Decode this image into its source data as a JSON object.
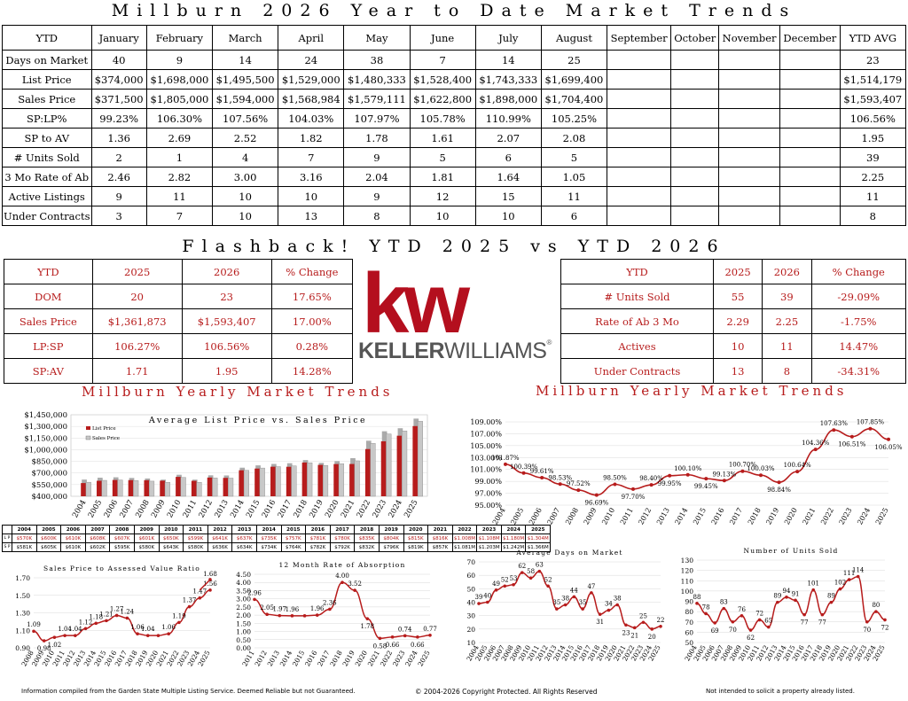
{
  "main_title": "Millburn 2026 Year to Date Market Trends",
  "ytd_table": {
    "headers": [
      "YTD",
      "January",
      "February",
      "March",
      "April",
      "May",
      "June",
      "July",
      "August",
      "September",
      "October",
      "November",
      "December",
      "YTD AVG"
    ],
    "rows": [
      [
        "Days on Market",
        "40",
        "9",
        "14",
        "24",
        "38",
        "7",
        "14",
        "25",
        "",
        "",
        "",
        "",
        "23"
      ],
      [
        "List Price",
        "$374,000",
        "$1,698,000",
        "$1,495,500",
        "$1,529,000",
        "$1,480,333",
        "$1,528,400",
        "$1,743,333",
        "$1,699,400",
        "",
        "",
        "",
        "",
        "$1,514,179"
      ],
      [
        "Sales Price",
        "$371,500",
        "$1,805,000",
        "$1,594,000",
        "$1,568,984",
        "$1,579,111",
        "$1,622,800",
        "$1,898,000",
        "$1,704,400",
        "",
        "",
        "",
        "",
        "$1,593,407"
      ],
      [
        "SP:LP%",
        "99.23%",
        "106.30%",
        "107.56%",
        "104.03%",
        "107.97%",
        "105.78%",
        "110.99%",
        "105.25%",
        "",
        "",
        "",
        "",
        "106.56%"
      ],
      [
        "SP to AV",
        "1.36",
        "2.69",
        "2.52",
        "1.82",
        "1.78",
        "1.61",
        "2.07",
        "2.08",
        "",
        "",
        "",
        "",
        "1.95"
      ],
      [
        "# Units Sold",
        "2",
        "1",
        "4",
        "7",
        "9",
        "5",
        "6",
        "5",
        "",
        "",
        "",
        "",
        "39"
      ],
      [
        "3 Mo Rate of Ab",
        "2.46",
        "2.82",
        "3.00",
        "3.16",
        "2.04",
        "1.81",
        "1.64",
        "1.05",
        "",
        "",
        "",
        "",
        "2.25"
      ],
      [
        "Active Listings",
        "9",
        "11",
        "10",
        "10",
        "9",
        "12",
        "15",
        "11",
        "",
        "",
        "",
        "",
        "11"
      ],
      [
        "Under Contracts",
        "3",
        "7",
        "10",
        "13",
        "8",
        "10",
        "10",
        "6",
        "",
        "",
        "",
        "",
        "8"
      ]
    ]
  },
  "flashback_title": "Flashback!  YTD 2025 vs YTD 2026",
  "flash_left": {
    "headers": [
      "YTD",
      "2025",
      "2026",
      "% Change"
    ],
    "rows": [
      [
        "DOM",
        "20",
        "23",
        "17.65%"
      ],
      [
        "Sales Price",
        "$1,361,873",
        "$1,593,407",
        "17.00%"
      ],
      [
        "LP:SP",
        "106.27%",
        "106.56%",
        "0.28%"
      ],
      [
        "SP:AV",
        "1.71",
        "1.95",
        "14.28%"
      ]
    ]
  },
  "flash_right": {
    "headers": [
      "YTD",
      "2025",
      "2026",
      "% Change"
    ],
    "rows": [
      [
        "# Units Sold",
        "55",
        "39",
        "-29.09%"
      ],
      [
        "Rate of Ab 3 Mo",
        "2.29",
        "2.25",
        "-1.75%"
      ],
      [
        "Actives",
        "10",
        "11",
        "14.47%"
      ],
      [
        "Under Contracts",
        "13",
        "8",
        "-34.31%"
      ]
    ]
  },
  "logo": {
    "mark": "kw",
    "name_bold": "KELLER",
    "name_light": "WILLIAMS",
    "reg": "®",
    "color": "#b40f1e"
  },
  "yearly_title_left": "Millburn Yearly Market Trends",
  "yearly_title_right": "Millburn Yearly Market Trends",
  "colors": {
    "accent": "#b71c1c",
    "bar_gray": "#c8c8c8"
  },
  "chart_data": [
    {
      "type": "bar",
      "title": "Average List Price vs. Sales Price",
      "categories": [
        "2004",
        "2005",
        "2006",
        "2007",
        "2008",
        "2009",
        "2010",
        "2011",
        "2012",
        "2013",
        "2014",
        "2015",
        "2016",
        "2017",
        "2018",
        "2019",
        "2020",
        "2021",
        "2022",
        "2023",
        "2024",
        "2025"
      ],
      "series": [
        {
          "name": "List Price",
          "values": [
            570000,
            600000,
            610000,
            608000,
            607000,
            601000,
            650000,
            599000,
            641000,
            637000,
            735000,
            757000,
            781000,
            780000,
            835000,
            804000,
            815000,
            816000,
            1008000,
            1108000,
            1180000,
            1304000
          ]
        },
        {
          "name": "Sales Price",
          "values": [
            581000,
            605000,
            610000,
            602000,
            595000,
            580000,
            643000,
            580000,
            636000,
            634000,
            734000,
            764000,
            782000,
            792000,
            832000,
            796000,
            819000,
            857000,
            1081000,
            1203000,
            1242000,
            1366000
          ]
        }
      ],
      "yticks": [
        "$400,000",
        "$550,000",
        "$700,000",
        "$850,000",
        "$1,000,000",
        "$1,150,000",
        "$1,300,000",
        "$1,450,000"
      ],
      "ylim": [
        400000,
        1450000
      ],
      "mini_table": {
        "years": [
          "2004",
          "2005",
          "2006",
          "2007",
          "2008",
          "2009",
          "2010",
          "2011",
          "2012",
          "2013",
          "2014",
          "2015",
          "2016",
          "2017",
          "2018",
          "2019",
          "2020",
          "2021",
          "2022",
          "2023",
          "2024",
          "2025"
        ],
        "lp": [
          "$570K",
          "$600K",
          "$610K",
          "$608K",
          "$607K",
          "$601K",
          "$650K",
          "$599K",
          "$641K",
          "$637K",
          "$735K",
          "$757K",
          "$781K",
          "$780K",
          "$835K",
          "$804K",
          "$815K",
          "$816K",
          "$1.008M",
          "$1.108M",
          "$1.180M",
          "$1.304M"
        ],
        "sp": [
          "$581K",
          "$605K",
          "$610K",
          "$602K",
          "$595K",
          "$580K",
          "$643K",
          "$580K",
          "$636K",
          "$634K",
          "$734K",
          "$764K",
          "$782K",
          "$792K",
          "$832K",
          "$796K",
          "$819K",
          "$857K",
          "$1.081M",
          "$1.203M",
          "$1.242M",
          "$1.366M"
        ],
        "lp_label": "L P",
        "sp_label": "S P"
      }
    },
    {
      "type": "line",
      "title": "",
      "x": [
        "2004",
        "2005",
        "2006",
        "2007",
        "2008",
        "2009",
        "2010",
        "2011",
        "2012",
        "2013",
        "2014",
        "2015",
        "2016",
        "2017",
        "2018",
        "2019",
        "2020",
        "2021",
        "2022",
        "2023",
        "2024",
        "2025"
      ],
      "values": [
        101.87,
        100.39,
        99.61,
        98.53,
        97.52,
        96.69,
        98.5,
        97.7,
        98.4,
        99.95,
        100.1,
        99.45,
        99.13,
        100.7,
        100.03,
        98.84,
        100.64,
        104.36,
        107.63,
        106.51,
        107.85,
        106.05
      ],
      "labels": [
        "101.87%",
        "100.39%",
        "99.61%",
        "98.53%",
        "97.52%",
        "96.69%",
        "98.50%",
        "97.70%",
        "98.40%",
        "99.95%",
        "100.10%",
        "99.45%",
        "99.13%",
        "100.70%",
        "100.03%",
        "98.84%",
        "100.64%",
        "104.36%",
        "107.63%",
        "106.51%",
        "107.85%",
        "106.05%"
      ],
      "yticks": [
        "95.00%",
        "97.00%",
        "99.00%",
        "101.00%",
        "103.00%",
        "105.00%",
        "107.00%",
        "109.00%"
      ],
      "ylim": [
        95,
        109
      ]
    },
    {
      "type": "line",
      "title": "Sales Price to Assessed Value Ratio",
      "x": [
        "2008",
        "2009",
        "2010",
        "2011",
        "2012",
        "2013",
        "2014",
        "2015",
        "2016",
        "2017",
        "2018",
        "2019",
        "2020",
        "2021",
        "2022",
        "2023",
        "2024",
        "2025"
      ],
      "values": [
        1.09,
        0.98,
        1.02,
        1.04,
        1.04,
        1.12,
        1.18,
        1.21,
        1.27,
        1.24,
        1.06,
        1.04,
        1.04,
        1.06,
        1.19,
        1.37,
        1.47,
        1.56
      ],
      "labels": [
        "1.09",
        "0.98",
        "1.02",
        "1.04",
        "1.04",
        "1.12",
        "1.18",
        "1.21",
        "1.27",
        "1.24",
        "1.06",
        "1.04",
        "",
        "1.06",
        "1.19",
        "1.37",
        "1.47",
        "1.56"
      ],
      "extra_label": "1.68",
      "yticks": [
        "0.90",
        "1.10",
        "1.30",
        "1.50",
        "1.70"
      ],
      "ylim": [
        0.9,
        1.7
      ]
    },
    {
      "type": "line",
      "title": "12 Month Rate of Absorption",
      "x": [
        "2011",
        "2012",
        "2013",
        "2014",
        "2015",
        "2016",
        "2017",
        "2018",
        "2019",
        "2020",
        "2021",
        "2022",
        "2023",
        "2024",
        "2025"
      ],
      "values": [
        2.96,
        2.05,
        1.97,
        1.96,
        1.96,
        2.0,
        2.36,
        4.0,
        3.52,
        1.78,
        0.58,
        0.66,
        0.74,
        0.66,
        0.77
      ],
      "labels": [
        "2.96",
        "2.05",
        "1.97",
        "1.96",
        "",
        "1.96",
        "2.36",
        "4.00",
        "3.52",
        "1.78",
        "0.58",
        "0.66",
        "0.74",
        "0.66",
        "0.77"
      ],
      "yticks": [
        "0.00",
        "0.50",
        "1.00",
        "1.50",
        "2.00",
        "2.50",
        "3.00",
        "3.50",
        "4.00",
        "4.50"
      ],
      "ylim": [
        0,
        4.5
      ]
    },
    {
      "type": "line",
      "title": "Average Days on Market",
      "x": [
        "2004",
        "2005",
        "2006",
        "2007",
        "2008",
        "2009",
        "2010",
        "2011",
        "2012",
        "2013",
        "2014",
        "2015",
        "2016",
        "2017",
        "2018",
        "2019",
        "2020",
        "2021",
        "2022",
        "2023",
        "2024",
        "2025"
      ],
      "values": [
        39,
        40,
        49,
        52,
        53,
        62,
        58,
        63,
        52,
        35,
        38,
        44,
        35,
        47,
        31,
        34,
        38,
        23,
        21,
        25,
        20,
        22
      ],
      "yticks": [
        "10",
        "20",
        "30",
        "40",
        "50",
        "60",
        "70"
      ],
      "ylim": [
        10,
        70
      ]
    },
    {
      "type": "line",
      "title": "Number of Units Sold",
      "x": [
        "2004",
        "2005",
        "2006",
        "2007",
        "2008",
        "2009",
        "2010",
        "2011",
        "2012",
        "2013",
        "2014",
        "2015",
        "2016",
        "2017",
        "2018",
        "2019",
        "2020",
        "2021",
        "2022",
        "2023",
        "2024",
        "2025"
      ],
      "values": [
        88,
        78,
        69,
        83,
        70,
        76,
        62,
        72,
        65,
        89,
        94,
        91,
        77,
        101,
        77,
        89,
        102,
        111,
        114,
        70,
        80,
        72
      ],
      "yticks": [
        "50",
        "60",
        "70",
        "80",
        "90",
        "100",
        "110",
        "120",
        "130"
      ],
      "ylim": [
        50,
        130
      ]
    }
  ],
  "footer": {
    "left": "Information compiled from the Garden State Multiple Listing Service.  Deemed Reliable but not Guaranteed.",
    "center": "© 2004-2026 Copyright Protected.  All Rights Reserved",
    "right": "Not intended to solicit a property already listed."
  }
}
